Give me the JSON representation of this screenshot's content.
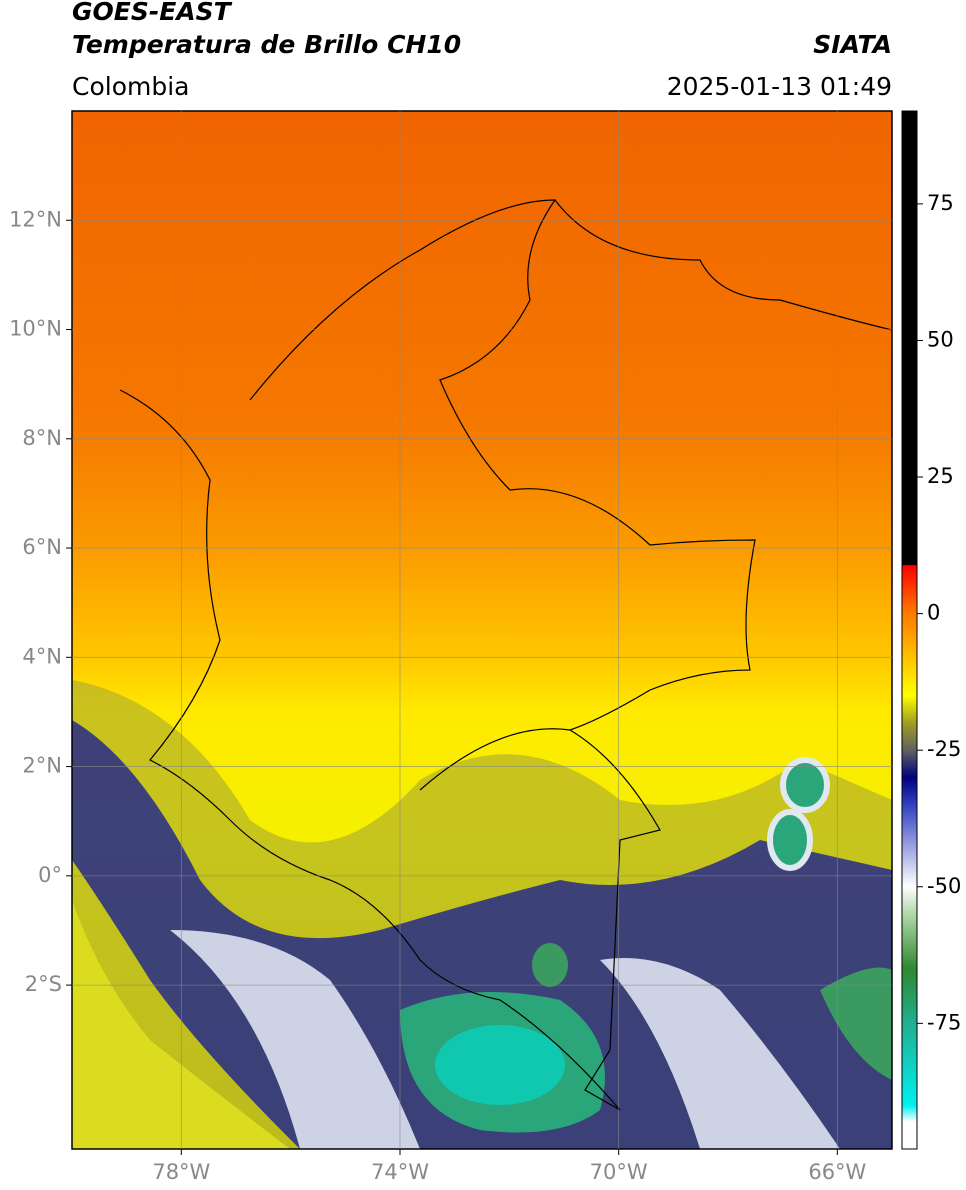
{
  "header": {
    "title": "GOES-EAST",
    "subtitle": "Temperatura de Brillo CH10",
    "region": "Colombia",
    "source": "SIATA",
    "datetime": "2025-01-13 01:49"
  },
  "map": {
    "xlim": [
      -80,
      -65
    ],
    "ylim": [
      -5,
      14
    ],
    "xticks": [
      {
        "value": -78,
        "label": "78°W"
      },
      {
        "value": -74,
        "label": "74°W"
      },
      {
        "value": -70,
        "label": "70°W"
      },
      {
        "value": -66,
        "label": "66°W"
      }
    ],
    "yticks": [
      {
        "value": 12,
        "label": "12°N"
      },
      {
        "value": 10,
        "label": "10°N"
      },
      {
        "value": 8,
        "label": "8°N"
      },
      {
        "value": 6,
        "label": "6°N"
      },
      {
        "value": 4,
        "label": "4°N"
      },
      {
        "value": 2,
        "label": "2°N"
      },
      {
        "value": 0,
        "label": "0°"
      },
      {
        "value": -2,
        "label": "2°S"
      }
    ],
    "grid": true
  },
  "colorbar": {
    "lim": [
      -98,
      92
    ],
    "ticks": [
      75,
      50,
      25,
      0,
      -25,
      -50,
      -75
    ]
  }
}
